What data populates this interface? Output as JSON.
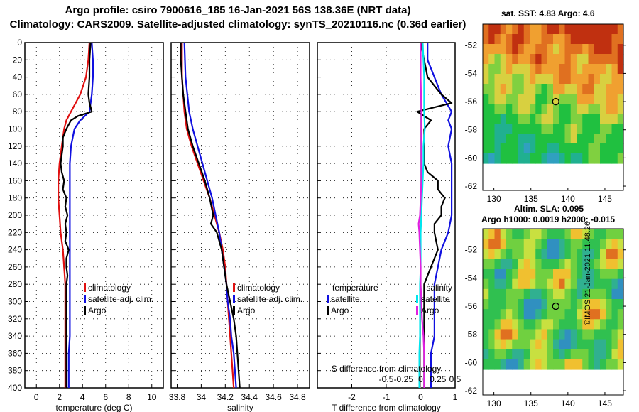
{
  "header": {
    "title_line1": "Argo profile: csiro 7900616_185 16-Jan-2021 56S 138.36E (NRT data)",
    "title_line2": "Climatology: CARS2009. Satellite-adjusted climatology: synTS_20210116.nc (0.36d earlier)"
  },
  "colors": {
    "climatology": "#e01010",
    "satellite": "#1010e0",
    "argo": "#000000",
    "sat_salinity": "#00e5ee",
    "argo_salinity": "#e020e0"
  },
  "map_top": {
    "title": "sat. SST: 4.83 Argo: 4.6",
    "x_ticks": [
      "130",
      "135",
      "140",
      "145"
    ],
    "y_ticks": [
      "-52",
      "-54",
      "-56",
      "-58",
      "-60",
      "-62"
    ]
  },
  "map_bottom": {
    "title_line1": "Altim. SLA: 0.095",
    "title_line2": "Argo h1000: 0.0019 h2000: -0.015",
    "x_ticks": [
      "130",
      "135",
      "140",
      "145"
    ],
    "y_ticks": [
      "-52",
      "-54",
      "-56",
      "-58",
      "-60",
      "-62"
    ]
  },
  "credit": "©IMOS 21-Jan-2021 11:48:26",
  "chart_data": [
    {
      "type": "line",
      "xlabel": "temperature (deg C)",
      "xlim": [
        -1,
        11
      ],
      "ylim": [
        400,
        0
      ],
      "x_ticks": [
        "0",
        "2",
        "4",
        "6",
        "8",
        "10"
      ],
      "y_ticks": [
        "0",
        "20",
        "40",
        "60",
        "80",
        "100",
        "120",
        "140",
        "160",
        "180",
        "200",
        "220",
        "240",
        "260",
        "280",
        "300",
        "320",
        "340",
        "360",
        "380",
        "400"
      ],
      "legend": [
        "climatology",
        "satellite-adj. clim.",
        "Argo"
      ],
      "series": [
        {
          "name": "climatology",
          "depth": [
            0,
            20,
            40,
            60,
            70,
            80,
            90,
            100,
            120,
            140,
            160,
            180,
            200,
            220,
            240,
            260,
            280,
            300,
            320,
            340,
            360,
            380,
            400
          ],
          "values": [
            4.6,
            4.5,
            4.3,
            3.8,
            3.4,
            3.0,
            2.6,
            2.4,
            2.2,
            2.0,
            1.9,
            1.9,
            2.0,
            2.1,
            2.3,
            2.4,
            2.5,
            2.5,
            2.5,
            2.5,
            2.5,
            2.5,
            2.5
          ]
        },
        {
          "name": "satellite-adj. clim.",
          "depth": [
            0,
            20,
            40,
            60,
            80,
            90,
            100,
            120,
            140,
            160,
            180,
            200,
            220,
            240,
            260,
            280,
            300,
            320,
            340,
            360,
            380,
            400
          ],
          "values": [
            4.8,
            4.9,
            4.9,
            4.8,
            4.6,
            3.8,
            3.3,
            3.0,
            2.9,
            2.9,
            2.9,
            2.9,
            2.9,
            2.9,
            2.9,
            2.9,
            2.9,
            2.9,
            2.9,
            2.8,
            2.8,
            2.8
          ]
        },
        {
          "name": "Argo",
          "depth": [
            0,
            20,
            40,
            60,
            70,
            80,
            85,
            90,
            100,
            110,
            120,
            130,
            140,
            150,
            160,
            170,
            180,
            190,
            200,
            210,
            220,
            230,
            240,
            250,
            260,
            270,
            280,
            300,
            320,
            340,
            360,
            380,
            400
          ],
          "values": [
            4.7,
            4.6,
            4.6,
            4.5,
            4.6,
            4.8,
            3.6,
            3.0,
            2.6,
            2.3,
            2.3,
            2.2,
            2.1,
            2.2,
            2.4,
            2.3,
            2.6,
            2.5,
            2.7,
            2.5,
            2.6,
            2.5,
            2.8,
            2.6,
            2.6,
            2.7,
            2.6,
            2.6,
            2.6,
            2.6,
            2.6,
            2.6,
            2.6
          ]
        }
      ]
    },
    {
      "type": "line",
      "xlabel": "salinity",
      "xlim": [
        33.75,
        34.9
      ],
      "ylim": [
        400,
        0
      ],
      "x_ticks": [
        "33.8",
        "34",
        "34.2",
        "34.4",
        "34.6",
        "34.8"
      ],
      "legend": [
        "climatology",
        "satellite-adj. clim.",
        "Argo"
      ],
      "series": [
        {
          "name": "climatology",
          "depth": [
            0,
            40,
            80,
            100,
            120,
            140,
            160,
            180,
            200,
            220,
            240,
            260,
            280,
            300,
            320,
            340,
            360,
            380,
            400
          ],
          "values": [
            33.84,
            33.84,
            33.86,
            33.88,
            33.92,
            33.97,
            34.02,
            34.07,
            34.11,
            34.15,
            34.18,
            34.2,
            34.21,
            34.22,
            34.23,
            34.24,
            34.25,
            34.26,
            34.27
          ]
        },
        {
          "name": "satellite-adj. clim.",
          "depth": [
            0,
            40,
            80,
            100,
            120,
            140,
            160,
            180,
            200,
            220,
            240,
            260,
            280,
            300,
            320,
            340,
            360,
            380,
            400
          ],
          "values": [
            33.86,
            33.87,
            33.9,
            33.93,
            33.97,
            34.01,
            34.05,
            34.09,
            34.12,
            34.15,
            34.17,
            34.19,
            34.21,
            34.22,
            34.24,
            34.25,
            34.27,
            34.28,
            34.29
          ]
        },
        {
          "name": "Argo",
          "depth": [
            0,
            20,
            40,
            60,
            80,
            100,
            120,
            140,
            160,
            180,
            200,
            210,
            220,
            230,
            240,
            250,
            260,
            280,
            300,
            320,
            340,
            360,
            380,
            400
          ],
          "values": [
            33.83,
            33.83,
            33.84,
            33.85,
            33.87,
            33.89,
            33.93,
            33.98,
            34.03,
            34.07,
            34.1,
            34.08,
            34.13,
            34.15,
            34.17,
            34.18,
            34.19,
            34.21,
            34.24,
            34.27,
            34.29,
            34.3,
            34.31,
            34.32
          ]
        }
      ]
    },
    {
      "type": "line",
      "xlabel": "T difference from climatology",
      "xlim": [
        -3,
        1
      ],
      "ylim": [
        400,
        0
      ],
      "x_ticks": [
        "-2",
        "-1",
        "0",
        "1"
      ],
      "secondary_xlabel": "S difference from climatology",
      "secondary_x_ticks": [
        "-0.5",
        "-0.25",
        "0",
        "0.25",
        "0.5"
      ],
      "legend_temperature": {
        "heading": "temperature",
        "items": [
          "satellite",
          "Argo"
        ]
      },
      "legend_salinity": {
        "heading": "salinity",
        "items": [
          "satellite",
          "Argo"
        ]
      },
      "series": [
        {
          "name": "temperature satellite",
          "depth": [
            0,
            20,
            40,
            60,
            80,
            90,
            100,
            120,
            140,
            160,
            180,
            200,
            220,
            240,
            260,
            280,
            300,
            320,
            340,
            360,
            380,
            400
          ],
          "values": [
            0.2,
            0.2,
            0.4,
            0.6,
            0.9,
            0.8,
            0.9,
            0.8,
            0.9,
            0.9,
            0.9,
            0.9,
            0.8,
            0.6,
            0.5,
            0.4,
            0.4,
            0.4,
            0.4,
            0.3,
            0.3,
            0.3
          ]
        },
        {
          "name": "temperature Argo",
          "depth": [
            0,
            20,
            40,
            60,
            70,
            75,
            80,
            85,
            90,
            100,
            110,
            120,
            140,
            150,
            160,
            170,
            180,
            190,
            200,
            210,
            220,
            240,
            260,
            280,
            300,
            320,
            340,
            360,
            380,
            400
          ],
          "values": [
            0.0,
            0.1,
            0.2,
            0.6,
            0.9,
            0.4,
            -0.1,
            0.1,
            0.3,
            0.1,
            0.1,
            0.1,
            0.1,
            0.2,
            0.5,
            0.5,
            0.7,
            0.6,
            0.6,
            0.4,
            0.4,
            0.5,
            0.3,
            0.1,
            0.1,
            0.1,
            0.1,
            0.1,
            0.1,
            0.1
          ]
        },
        {
          "name": "salinity satellite",
          "depth": [
            0,
            20,
            40,
            60,
            80,
            100,
            120,
            140,
            160,
            180,
            200,
            220,
            240,
            260,
            280,
            300,
            320,
            340,
            360,
            380,
            400
          ],
          "values": [
            0.03,
            0.04,
            0.05,
            0.05,
            0.05,
            0.06,
            0.04,
            0.04,
            0.03,
            0.02,
            0.01,
            0.0,
            0.0,
            0.0,
            -0.01,
            -0.01,
            -0.01,
            -0.01,
            -0.02,
            -0.02,
            -0.02
          ]
        },
        {
          "name": "salinity Argo",
          "depth": [
            0,
            40,
            80,
            100,
            120,
            140,
            160,
            180,
            200,
            210,
            220,
            240,
            260,
            280,
            300,
            320,
            340,
            360,
            380,
            400
          ],
          "values": [
            0.0,
            0.0,
            0.01,
            0.01,
            0.01,
            0.01,
            0.01,
            0.0,
            -0.01,
            -0.03,
            -0.02,
            -0.01,
            0.0,
            0.0,
            0.01,
            0.02,
            0.04,
            0.05,
            0.05,
            0.05
          ]
        }
      ]
    }
  ]
}
